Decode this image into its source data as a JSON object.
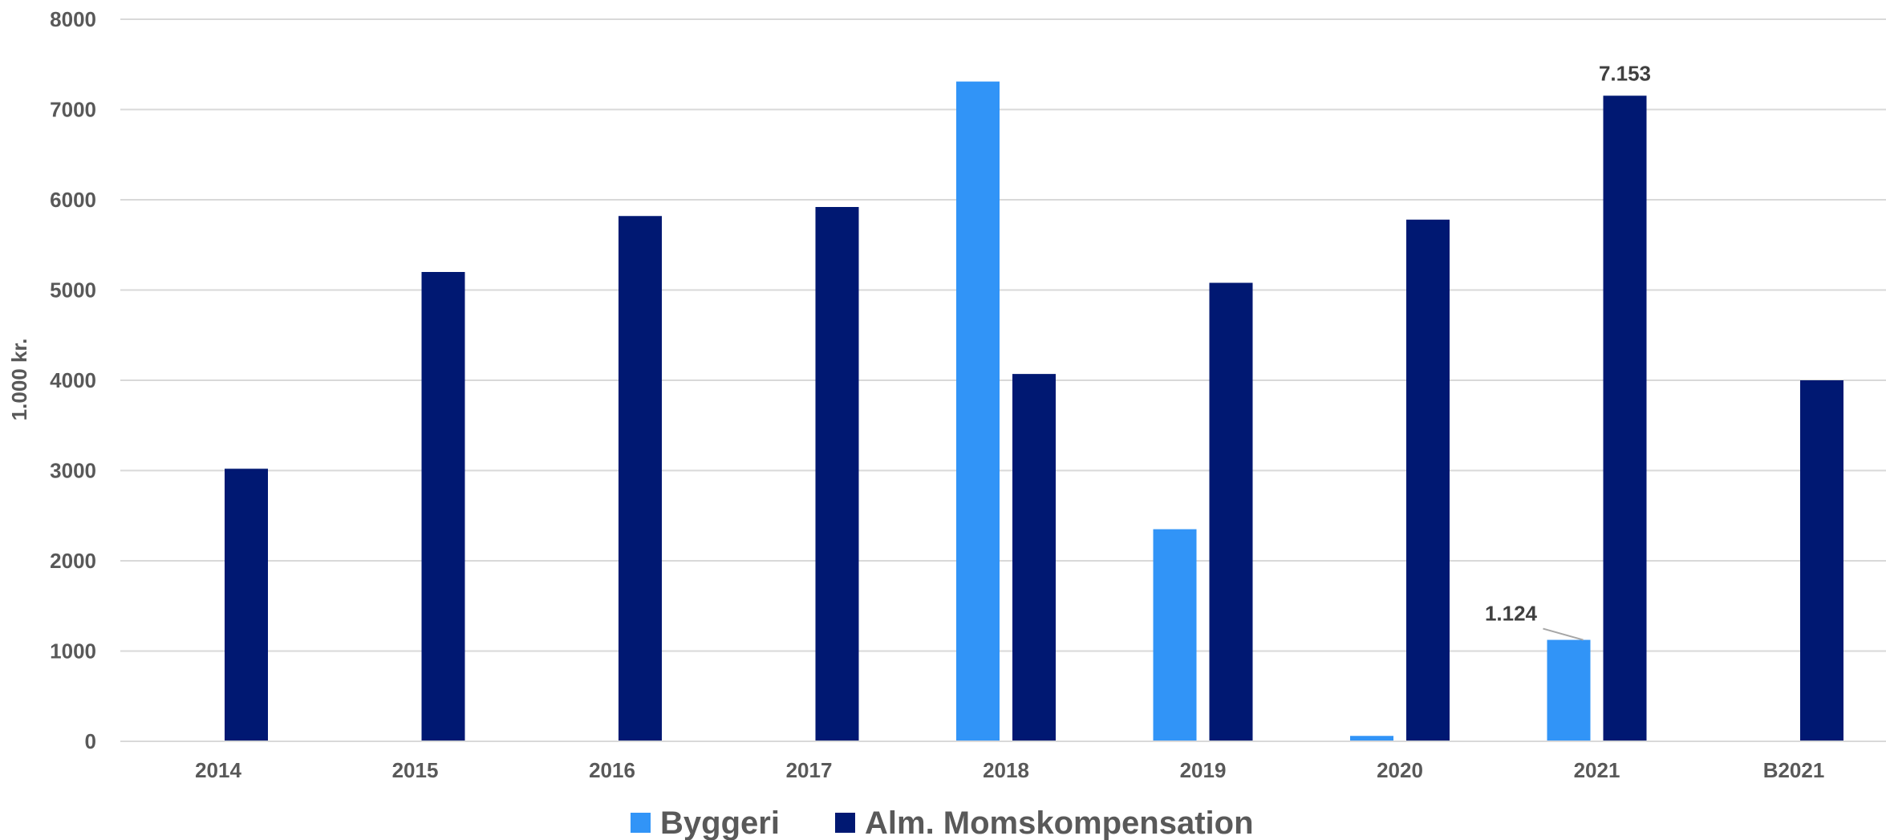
{
  "chart_data": {
    "type": "bar",
    "categories": [
      "2014",
      "2015",
      "2016",
      "2017",
      "2018",
      "2019",
      "2020",
      "2021",
      "B2021"
    ],
    "series": [
      {
        "name": "Byggeri",
        "color": "#3194F7",
        "values": [
          null,
          null,
          null,
          null,
          7310,
          2350,
          60,
          1124,
          null
        ]
      },
      {
        "name": "Alm. Momskompensation",
        "color": "#001872",
        "values": [
          3020,
          5200,
          5820,
          5920,
          4070,
          5080,
          5780,
          7153,
          4000
        ]
      }
    ],
    "data_labels": [
      {
        "series": 0,
        "category": "2021",
        "text": "1.124"
      },
      {
        "series": 1,
        "category": "2021",
        "text": "7.153"
      }
    ],
    "title": "",
    "xlabel": "",
    "ylabel": "1.000 kr.",
    "ylim": [
      0,
      8000
    ],
    "yticks": [
      "0",
      "1000",
      "2000",
      "3000",
      "4000",
      "5000",
      "6000",
      "7000",
      "8000"
    ],
    "grid": true,
    "legend_position": "bottom"
  }
}
